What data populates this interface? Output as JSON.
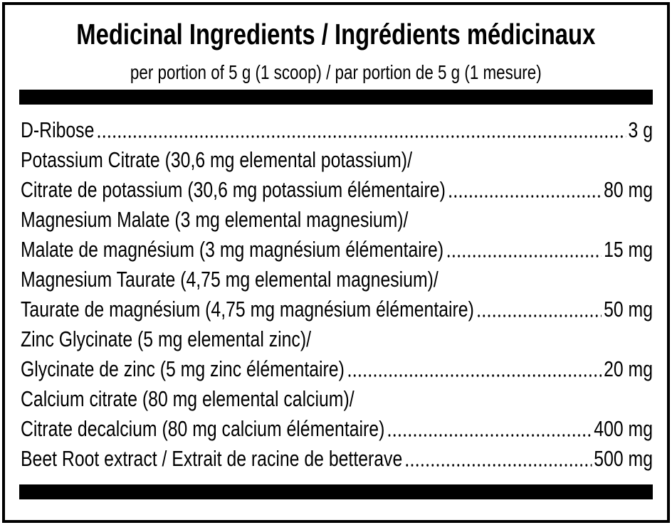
{
  "header": {
    "title": "Medicinal Ingredients / Ingrédients médicinaux",
    "subtitle": "per portion of 5 g (1 scoop) / par portion de 5 g (1 mesure)"
  },
  "ingredients": [
    {
      "lines": [
        "D-Ribose"
      ],
      "amount": "3 g"
    },
    {
      "lines": [
        "Potassium Citrate (30,6 mg elemental potassium)/",
        "Citrate de potassium (30,6 mg potassium élémentaire)"
      ],
      "amount": "80 mg"
    },
    {
      "lines": [
        "Magnesium Malate (3 mg elemental magnesium)/",
        "Malate de magnésium (3 mg magnésium élémentaire)"
      ],
      "amount": "15 mg"
    },
    {
      "lines": [
        "Magnesium Taurate (4,75 mg elemental magnesium)/",
        "Taurate de magnésium (4,75 mg magnésium élémentaire)"
      ],
      "amount": "50 mg"
    },
    {
      "lines": [
        "Zinc Glycinate (5 mg elemental zinc)/",
        "Glycinate de zinc (5 mg zinc élémentaire)"
      ],
      "amount": "20 mg"
    },
    {
      "lines": [
        "Calcium citrate (80 mg elemental calcium)/",
        "Citrate decalcium (80 mg calcium élémentaire)"
      ],
      "amount": "400 mg"
    },
    {
      "lines": [
        "Beet Root extract / Extrait de racine de betterave"
      ],
      "amount": "500 mg"
    }
  ]
}
